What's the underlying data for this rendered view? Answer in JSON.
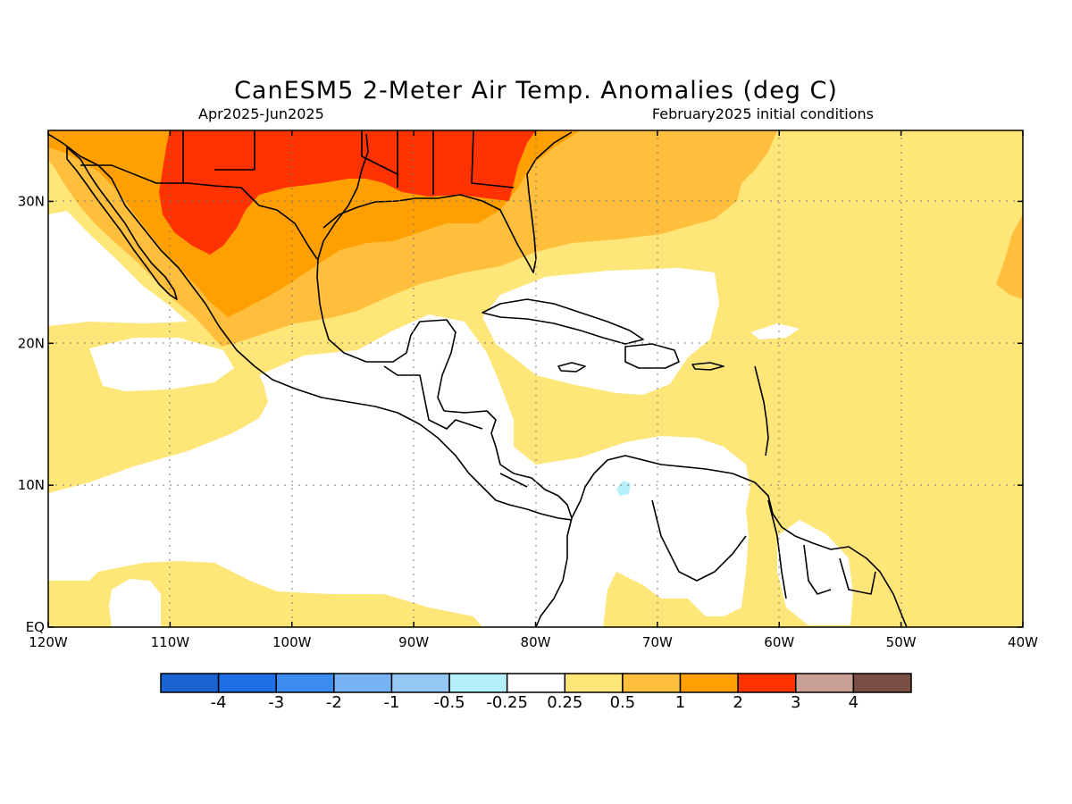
{
  "title": "CanESM5 2-Meter Air Temp. Anomalies (deg C)",
  "subtitle_left": "Apr2025-Jun2025",
  "subtitle_right": "February2025 initial conditions",
  "map": {
    "lon_range": [
      -120,
      -40
    ],
    "lat_range": [
      0,
      35
    ],
    "grid": "dotted",
    "x_ticks": [
      {
        "value": -120,
        "label": "120W"
      },
      {
        "value": -110,
        "label": "110W"
      },
      {
        "value": -100,
        "label": "100W"
      },
      {
        "value": -90,
        "label": "90W"
      },
      {
        "value": -80,
        "label": "80W"
      },
      {
        "value": -70,
        "label": "70W"
      },
      {
        "value": -60,
        "label": "60W"
      },
      {
        "value": -50,
        "label": "50W"
      },
      {
        "value": -40,
        "label": "40W"
      }
    ],
    "y_ticks": [
      {
        "value": 0,
        "label": "EQ"
      },
      {
        "value": 10,
        "label": "10N"
      },
      {
        "value": 20,
        "label": "20N"
      },
      {
        "value": 30,
        "label": "30N"
      }
    ]
  },
  "colorbar": {
    "colors": [
      "#1964d2",
      "#1e6ee6",
      "#3c8cf0",
      "#78b4f5",
      "#96c8f5",
      "#b4f0fa",
      "#ffffff",
      "#ffe678",
      "#ffbe3c",
      "#ffa000",
      "#ff3200",
      "#c8a096",
      "#7a5046"
    ],
    "labels": [
      "-4",
      "-3",
      "-2",
      "-1",
      "-0.5",
      "-0.25",
      "0.25",
      "0.5",
      "1",
      "2",
      "3",
      "4"
    ]
  }
}
